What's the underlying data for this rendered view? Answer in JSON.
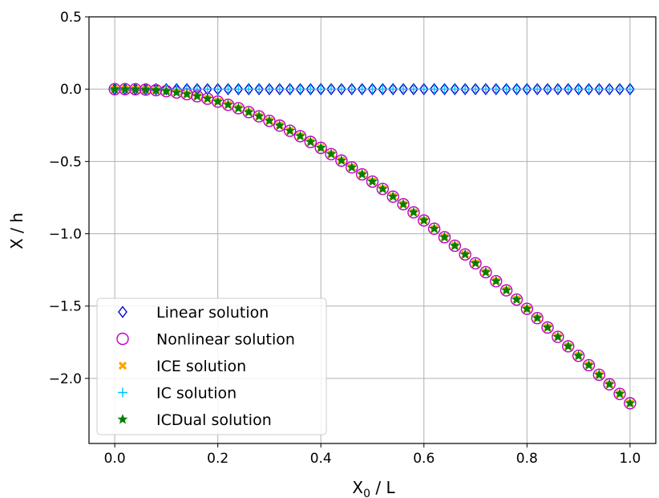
{
  "chart_data": {
    "type": "scatter",
    "title": "",
    "xlabel": {
      "main": "X",
      "sub": "0",
      "rest": " / L"
    },
    "ylabel": "X / h",
    "xlim": [
      -0.05,
      1.05
    ],
    "ylim": [
      -2.45,
      0.5
    ],
    "xticks": [
      0.0,
      0.2,
      0.4,
      0.6,
      0.8,
      1.0
    ],
    "xtick_labels": [
      "0.0",
      "0.2",
      "0.4",
      "0.6",
      "0.8",
      "1.0"
    ],
    "yticks": [
      0.5,
      0.0,
      -0.5,
      -1.0,
      -1.5,
      -2.0
    ],
    "ytick_labels": [
      "0.5",
      "0.0",
      "−0.5",
      "−1.0",
      "−1.5",
      "−2.0"
    ],
    "grid": true,
    "legend_position": "bottom-left",
    "x": [
      0.0,
      0.02,
      0.04,
      0.06,
      0.08,
      0.1,
      0.12,
      0.14,
      0.16,
      0.18,
      0.2,
      0.22,
      0.24,
      0.26,
      0.28,
      0.3,
      0.32,
      0.34,
      0.36,
      0.38,
      0.4,
      0.42,
      0.44,
      0.46,
      0.48,
      0.5,
      0.52,
      0.54,
      0.56,
      0.58,
      0.6,
      0.62,
      0.64,
      0.66,
      0.68,
      0.7,
      0.72,
      0.74,
      0.76,
      0.78,
      0.8,
      0.82,
      0.84,
      0.86,
      0.88,
      0.9,
      0.92,
      0.94,
      0.96,
      0.98,
      1.0
    ],
    "series": [
      {
        "name": "Linear solution",
        "marker": "diamond",
        "color": "#0000cc",
        "values": [
          0,
          0,
          0,
          0,
          0,
          0,
          0,
          0,
          0,
          0,
          0,
          0,
          0,
          0,
          0,
          0,
          0,
          0,
          0,
          0,
          0,
          0,
          0,
          0,
          0,
          0,
          0,
          0,
          0,
          0,
          0,
          0,
          0,
          0,
          0,
          0,
          0,
          0,
          0,
          0,
          0,
          0,
          0,
          0,
          0,
          0,
          0,
          0,
          0,
          0,
          0
        ]
      },
      {
        "name": "Nonlinear solution",
        "marker": "circle",
        "color": "#bf00bf",
        "values": [
          0.0,
          0.0,
          -0.001,
          -0.003,
          -0.007,
          -0.014,
          -0.023,
          -0.035,
          -0.049,
          -0.066,
          -0.086,
          -0.108,
          -0.132,
          -0.159,
          -0.188,
          -0.219,
          -0.252,
          -0.288,
          -0.325,
          -0.365,
          -0.406,
          -0.449,
          -0.494,
          -0.541,
          -0.589,
          -0.639,
          -0.69,
          -0.743,
          -0.796,
          -0.852,
          -0.908,
          -0.965,
          -1.024,
          -1.083,
          -1.143,
          -1.204,
          -1.266,
          -1.328,
          -1.391,
          -1.455,
          -1.519,
          -1.583,
          -1.648,
          -1.713,
          -1.778,
          -1.844,
          -1.909,
          -1.975,
          -2.041,
          -2.107,
          -2.172
        ]
      },
      {
        "name": "ICE solution",
        "marker": "x-filled",
        "color": "#ffa500",
        "values": [
          0.0,
          0.0,
          -0.001,
          -0.003,
          -0.007,
          -0.014,
          -0.023,
          -0.035,
          -0.049,
          -0.066,
          -0.086,
          -0.108,
          -0.132,
          -0.159,
          -0.188,
          -0.219,
          -0.252,
          -0.288,
          -0.325,
          -0.365,
          -0.406,
          -0.449,
          -0.494,
          -0.541,
          -0.589,
          -0.639,
          -0.69,
          -0.743,
          -0.796,
          -0.852,
          -0.908,
          -0.965,
          -1.024,
          -1.083,
          -1.143,
          -1.204,
          -1.266,
          -1.328,
          -1.391,
          -1.455,
          -1.519,
          -1.583,
          -1.648,
          -1.713,
          -1.778,
          -1.844,
          -1.909,
          -1.975,
          -2.041,
          -2.107,
          -2.172
        ]
      },
      {
        "name": "IC solution",
        "marker": "plus",
        "color": "#00bfff",
        "values": [
          0,
          0,
          0,
          0,
          0,
          0,
          0,
          0,
          0,
          0,
          0,
          0,
          0,
          0,
          0,
          0,
          0,
          0,
          0,
          0,
          0,
          0,
          0,
          0,
          0,
          0,
          0,
          0,
          0,
          0,
          0,
          0,
          0,
          0,
          0,
          0,
          0,
          0,
          0,
          0,
          0,
          0,
          0,
          0,
          0,
          0,
          0,
          0,
          0,
          0,
          0
        ]
      },
      {
        "name": "ICDual solution",
        "marker": "star",
        "color": "#008000",
        "values": [
          0.0,
          0.0,
          -0.001,
          -0.003,
          -0.007,
          -0.014,
          -0.023,
          -0.035,
          -0.049,
          -0.066,
          -0.086,
          -0.108,
          -0.132,
          -0.159,
          -0.188,
          -0.219,
          -0.252,
          -0.288,
          -0.325,
          -0.365,
          -0.406,
          -0.449,
          -0.494,
          -0.541,
          -0.589,
          -0.639,
          -0.69,
          -0.743,
          -0.796,
          -0.852,
          -0.908,
          -0.965,
          -1.024,
          -1.083,
          -1.143,
          -1.204,
          -1.266,
          -1.328,
          -1.391,
          -1.455,
          -1.519,
          -1.583,
          -1.648,
          -1.713,
          -1.778,
          -1.844,
          -1.909,
          -1.975,
          -2.041,
          -2.107,
          -2.172
        ]
      }
    ]
  }
}
